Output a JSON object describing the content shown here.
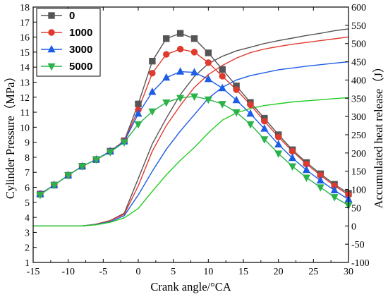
{
  "chart_data": {
    "type": "line",
    "title": "",
    "xlabel": "Crank angle/°CA",
    "ylabel_left": "Cylinder Pressure（MPa）",
    "ylabel_right": "Accumulated heat release（J）",
    "xlim": [
      -15,
      30
    ],
    "ylim_left": [
      1,
      18
    ],
    "ylim_right": [
      -100,
      600
    ],
    "x_ticks": [
      -15,
      -10,
      -5,
      0,
      5,
      10,
      15,
      20,
      25,
      30
    ],
    "y_left_ticks": [
      1,
      2,
      3,
      4,
      5,
      6,
      7,
      8,
      9,
      10,
      11,
      12,
      13,
      14,
      15,
      16,
      17,
      18
    ],
    "y_right_ticks": [
      -100,
      -50,
      0,
      50,
      100,
      150,
      200,
      250,
      300,
      350,
      400,
      450,
      500,
      550,
      600
    ],
    "grid": false,
    "legend_position": "top-left",
    "pressure_series": [
      {
        "name": "0",
        "color": "#555555",
        "marker": "square",
        "x": [
          -14,
          -12,
          -10,
          -8,
          -6,
          -4,
          -2,
          0,
          2,
          4,
          6,
          8,
          10,
          12,
          14,
          16,
          18,
          20,
          22,
          24,
          26,
          28,
          30
        ],
        "y": [
          5.55,
          6.15,
          6.8,
          7.4,
          7.85,
          8.4,
          9.1,
          11.55,
          14.4,
          15.9,
          16.25,
          15.9,
          14.95,
          13.85,
          12.75,
          11.65,
          10.6,
          9.5,
          8.5,
          7.65,
          6.9,
          6.2,
          5.6
        ]
      },
      {
        "name": "1000",
        "color": "#e03a2e",
        "marker": "circle",
        "x": [
          -14,
          -12,
          -10,
          -8,
          -6,
          -4,
          -2,
          0,
          2,
          4,
          6,
          8,
          10,
          12,
          14,
          16,
          18,
          20,
          22,
          24,
          26,
          28,
          30
        ],
        "y": [
          5.55,
          6.15,
          6.8,
          7.4,
          7.85,
          8.4,
          9.1,
          11.15,
          13.6,
          14.85,
          15.2,
          15.0,
          14.3,
          13.4,
          12.5,
          11.5,
          10.4,
          9.35,
          8.4,
          7.55,
          6.8,
          6.1,
          5.5
        ]
      },
      {
        "name": "3000",
        "color": "#1c5ce6",
        "marker": "triangle-up",
        "x": [
          -14,
          -12,
          -10,
          -8,
          -6,
          -4,
          -2,
          0,
          2,
          4,
          6,
          8,
          10,
          12,
          14,
          16,
          18,
          20,
          22,
          24,
          26,
          28,
          30
        ],
        "y": [
          5.55,
          6.15,
          6.8,
          7.4,
          7.85,
          8.4,
          9.05,
          10.9,
          12.35,
          13.3,
          13.7,
          13.65,
          13.2,
          12.6,
          11.8,
          10.9,
          9.9,
          8.85,
          7.95,
          7.15,
          6.45,
          5.8,
          5.2
        ]
      },
      {
        "name": "5000",
        "color": "#2ab34a",
        "marker": "triangle-down",
        "x": [
          -14,
          -12,
          -10,
          -8,
          -6,
          -4,
          -2,
          0,
          2,
          4,
          6,
          8,
          10,
          12,
          14,
          16,
          18,
          20,
          22,
          24,
          26,
          28,
          30
        ],
        "y": [
          5.5,
          6.15,
          6.8,
          7.4,
          7.85,
          8.35,
          9.0,
          10.2,
          11.05,
          11.65,
          11.95,
          12.05,
          11.85,
          11.55,
          11.0,
          10.2,
          9.2,
          8.25,
          7.4,
          6.65,
          6.0,
          5.35,
          4.8
        ]
      }
    ],
    "heat_release_series": [
      {
        "name": "0",
        "color": "#555555",
        "x": [
          -15,
          -8,
          -6,
          -4,
          -2,
          0,
          2,
          4,
          6,
          8,
          10,
          12,
          14,
          16,
          18,
          20,
          22,
          24,
          26,
          28,
          30
        ],
        "y": [
          0,
          0,
          5,
          15,
          35,
          130,
          225,
          295,
          360,
          410,
          445,
          465,
          480,
          490,
          500,
          508,
          515,
          522,
          528,
          535,
          540
        ]
      },
      {
        "name": "1000",
        "color": "#e03a2e",
        "x": [
          -15,
          -8,
          -6,
          -4,
          -2,
          0,
          2,
          4,
          6,
          8,
          10,
          12,
          14,
          16,
          18,
          20,
          22,
          24,
          26,
          28,
          30
        ],
        "y": [
          0,
          0,
          5,
          15,
          32,
          110,
          205,
          275,
          330,
          380,
          415,
          440,
          460,
          475,
          485,
          492,
          498,
          503,
          508,
          513,
          518
        ]
      },
      {
        "name": "3000",
        "color": "#1c5ce6",
        "x": [
          -15,
          -8,
          -6,
          -4,
          -2,
          0,
          2,
          4,
          6,
          8,
          10,
          12,
          14,
          16,
          18,
          20,
          22,
          24,
          26,
          28,
          30
        ],
        "y": [
          0,
          0,
          4,
          12,
          28,
          85,
          150,
          210,
          260,
          305,
          350,
          380,
          400,
          412,
          420,
          428,
          433,
          438,
          442,
          446,
          450
        ]
      },
      {
        "name": "5000",
        "color": "#22cc22",
        "x": [
          -15,
          -8,
          -6,
          -4,
          -2,
          0,
          2,
          4,
          6,
          8,
          10,
          12,
          14,
          16,
          18,
          20,
          22,
          24,
          26,
          28,
          30
        ],
        "y": [
          0,
          0,
          3,
          10,
          22,
          48,
          95,
          140,
          180,
          215,
          255,
          290,
          310,
          322,
          330,
          335,
          340,
          343,
          346,
          349,
          352
        ]
      }
    ]
  }
}
